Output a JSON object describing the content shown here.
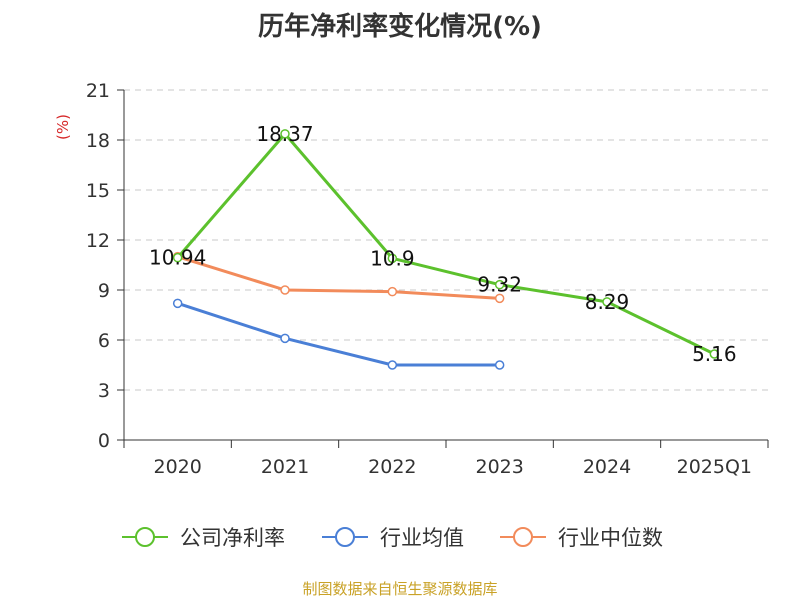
{
  "chart_data": {
    "type": "line",
    "title": "历年净利率变化情况(%)",
    "unit": "(%)",
    "categories": [
      "2020",
      "2021",
      "2022",
      "2023",
      "2024",
      "2025Q1"
    ],
    "ylim": [
      0,
      21
    ],
    "yticks": [
      0,
      3,
      6,
      9,
      12,
      15,
      18,
      21
    ],
    "grid": true,
    "legend_position": "bottom",
    "series": [
      {
        "name": "公司净利率",
        "color": "#5cc12d",
        "values": [
          10.94,
          18.37,
          10.9,
          9.32,
          8.29,
          5.16
        ],
        "labels": [
          "10.94",
          "18.37",
          "10.9",
          "9.32",
          "8.29",
          "5.16"
        ]
      },
      {
        "name": "行业均值",
        "color": "#4a7fd6",
        "values": [
          8.2,
          6.1,
          4.5,
          4.5,
          null,
          null
        ],
        "labels": null
      },
      {
        "name": "行业中位数",
        "color": "#f28b5b",
        "values": [
          11.0,
          9.0,
          8.9,
          8.5,
          null,
          null
        ],
        "labels": null
      }
    ],
    "source": "制图数据来自恒生聚源数据库"
  }
}
